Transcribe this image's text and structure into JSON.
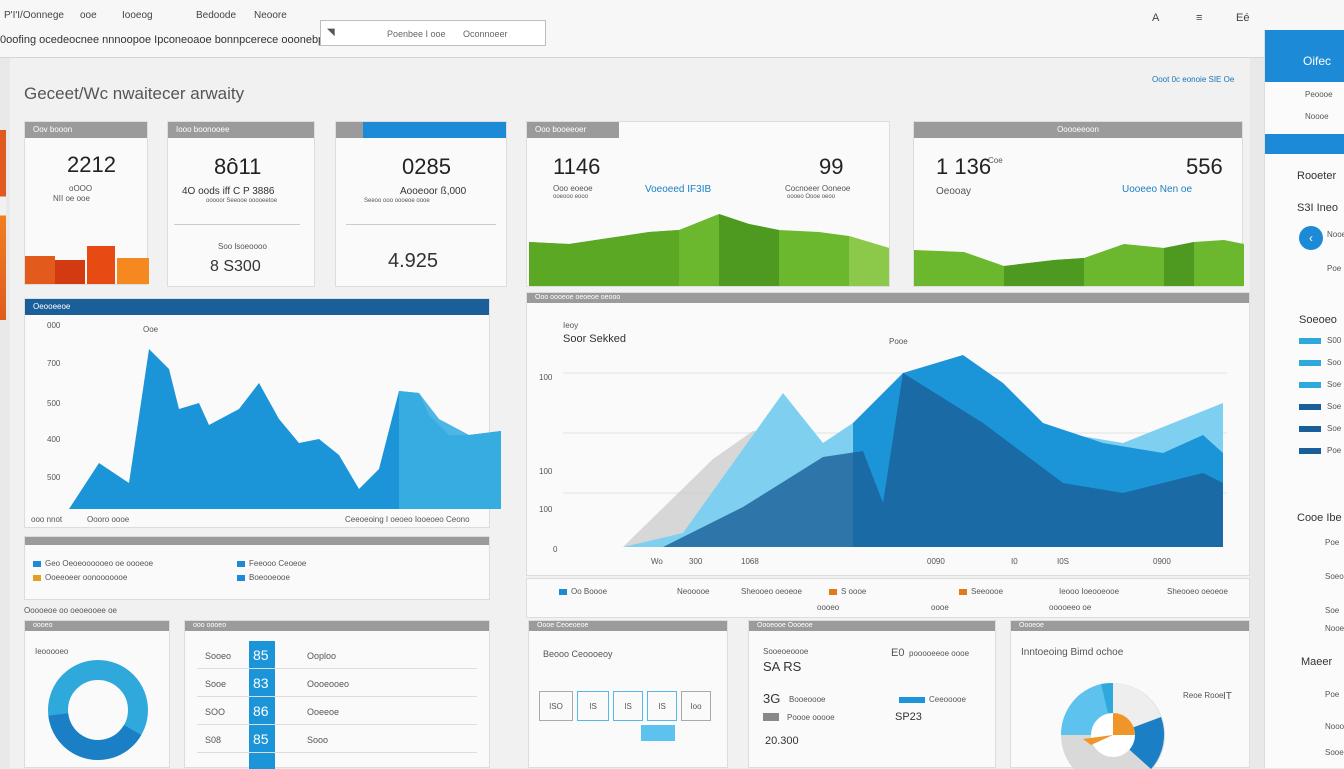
{
  "header": {
    "nav": [
      "P'I'I/Oonnege",
      "ooe",
      "Iooeog",
      "Bedoode",
      "Neoore"
    ],
    "tagline": "0oofing  ocedeocnee nnnoopoe Ipconeoaoe bonnpcerece ooonebpoor",
    "search": {
      "icon_label": "search-icon",
      "text_a": "Poenbee I ooe",
      "text_b": "Oconnoeer"
    },
    "icons": [
      "A",
      "≡",
      "Eé"
    ]
  },
  "title": "Geceet/Wc nwaitecer arwaity",
  "top_link": "Ooot 0c eonoie SIE Oe",
  "cards": {
    "c1": {
      "header": "Oov booon",
      "value": "2212",
      "sub1": "oOOO",
      "sub2": "NII oe ooe"
    },
    "c2": {
      "header": "Iooo boonooee",
      "value": "8ô11",
      "line": "4O oods  iff C P 3886",
      "sub": "ooooor  Seeooe ooooeetoe",
      "label": "Soo lsoeoooo",
      "value2": "8 S300"
    },
    "c3": {
      "value": "0285",
      "line": "Aooeoor ß,000",
      "sub": "Seeoo ooo oooeoe oooe",
      "value2": "4.925"
    },
    "c4": {
      "header": "Ooo booeeoer",
      "value": "1146",
      "sub": "Ooo eoeoe",
      "sub2": "ooeooo eooo",
      "link": "Voeoeed  IF3IB",
      "value2": "99",
      "line2": "Cocnoeer Ooneoe",
      "sub3": "oooeo  Oooe oeoo"
    },
    "c5": {
      "header": "Ooooeeoon",
      "value": "1 136",
      "sub": "Coe",
      "label": "Oeooay",
      "link": "Uooeeo  Nen oe",
      "value2": "556"
    }
  },
  "chart_left": {
    "header_left": "Oeooeeoe",
    "ylabels": [
      "000",
      "700",
      "500",
      "400",
      "500"
    ],
    "peak_label": "Ooe",
    "xlabels": [
      "ooo nnot",
      "Oooro oooe"
    ],
    "footer": "Ceeoeoing  I oeoeo Iooeoeo Ceono"
  },
  "legend_left": {
    "items": [
      {
        "label": "Geo Oeoeoooooeo oe oooeoe",
        "color": "#1c8ad6"
      },
      {
        "label": "Ooeeoeer oonooooooe",
        "color": "#e0a020"
      },
      {
        "label": "Feeooo Ceoeoe",
        "color": "#1c8ad6"
      },
      {
        "label": "Boeooeooe",
        "color": "#1c8ad6"
      }
    ],
    "note": "Ooooeoe oo oeoeooee oe"
  },
  "chart_main": {
    "header": "Ooo oooeoe oeoeoe oeooo",
    "small_label": "Ieoy",
    "title": "Soor Sekked",
    "peak_label": "Pooe",
    "ylabels": [
      "100",
      "100",
      "100"
    ],
    "zero": "0",
    "xlabels": [
      "Wo",
      "300",
      "1068",
      "0090",
      "I0",
      "I0S",
      "0900"
    ],
    "legend": [
      {
        "label": "Oo Boooe",
        "color": "#1c8ad6"
      },
      {
        "label": "Neooooe",
        "color": "#999999"
      },
      {
        "label": "S oooe",
        "color": "#e07a20"
      },
      {
        "label": "Seeoooe",
        "color": "#e07a20"
      },
      {
        "label": "Ieooo Ioeooeooe",
        "color": "#999999"
      },
      {
        "label": "Sheooeo  oeoeoe",
        "color": "#999999"
      }
    ],
    "sub_legend": [
      "oooeo",
      "oooe",
      "ooooeeo  oe"
    ]
  },
  "bottom": {
    "donut1": {
      "header": "oooeo",
      "label": "Ieooooeo"
    },
    "table": {
      "header": "ooo oooeo",
      "rows": [
        {
          "a": "Sooeo",
          "b": "85",
          "c": "Ooploo"
        },
        {
          "a": "Sooe",
          "b": "83",
          "c": "Oooeooeo"
        },
        {
          "a": "SOO",
          "b": "86",
          "c": "Ooeeoe"
        },
        {
          "a": "S08",
          "b": "85",
          "c": "Sooo"
        }
      ]
    },
    "b3": {
      "header": "Oooe Ceoeoeoe",
      "label": "Beooo Ceoooeoy",
      "cells": [
        "ISO",
        "IS",
        "IS",
        "IS",
        "Ioo"
      ]
    },
    "b4": {
      "header": "Oooeooe Oooeoe",
      "line1": "Sooeoeoooe",
      "value1": "SA  RS",
      "value1b": "E0",
      "line1b": "pooooeeoe oooe",
      "value2": "3G",
      "line2": "Booeoooe",
      "line3": "Poooe ooooe",
      "value3": "20.300",
      "value4": "SP23",
      "line4": "Ceeooooe"
    },
    "b5": {
      "header": "Oooeoe",
      "label": "Inntoeoing  Bimd  ochoe",
      "note": "Reoe Rooe",
      "value": "IT"
    }
  },
  "sidebar": {
    "head": "Oifec",
    "item1": "Peoooe",
    "item2": "Noooe",
    "sec1": "Rooeter",
    "val1": "S3I Ineo",
    "circle_label": "Nooe",
    "item3": "Poe",
    "sec2": "Soeoeo",
    "rows": [
      {
        "label": "S00",
        "color": "#2fa8dc"
      },
      {
        "label": "Soo",
        "color": "#2fa8dc"
      },
      {
        "label": "Soe",
        "color": "#2fa8dc"
      },
      {
        "label": "Soe",
        "color": "#1a5f99"
      },
      {
        "label": "Soe",
        "color": "#1a5f99"
      },
      {
        "label": "Poe",
        "color": "#1a5f99"
      }
    ],
    "sec3": "Cooe Ibe",
    "items3": [
      "Poe",
      "Soeoeo",
      "Soe",
      "Nooe"
    ],
    "sec4": "Maeer",
    "items4": [
      "Poe",
      "Noooe",
      "Sooe"
    ]
  }
}
